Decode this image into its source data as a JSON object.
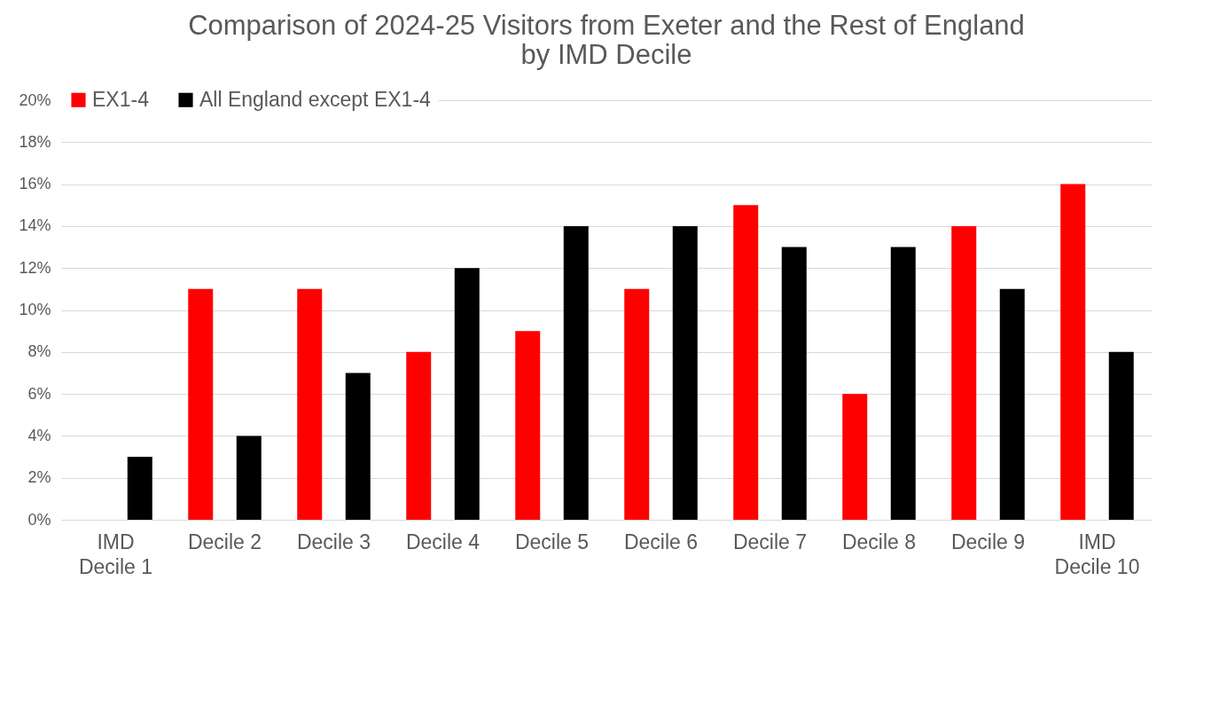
{
  "chart_data": {
    "type": "bar",
    "title": [
      "Comparison of 2024-25 Visitors from Exeter and the Rest of England",
      "by IMD Decile"
    ],
    "categories": [
      "IMD Decile 1",
      "Decile 2",
      "Decile 3",
      "Decile 4",
      "Decile 5",
      "Decile 6",
      "Decile 7",
      "Decile 8",
      "Decile 9",
      "IMD Decile 10"
    ],
    "series": [
      {
        "name": "EX1-4",
        "color": "#ff0000",
        "values": [
          0,
          11,
          11,
          8,
          9,
          11,
          15,
          6,
          14,
          16
        ]
      },
      {
        "name": "All England except EX1-4",
        "color": "#000000",
        "values": [
          3,
          4,
          7,
          12,
          14,
          14,
          13,
          13,
          11,
          8
        ]
      }
    ],
    "ylim": [
      0,
      20
    ],
    "yticks": [
      {
        "value": 0,
        "label": "0%"
      },
      {
        "value": 2,
        "label": "2%"
      },
      {
        "value": 4,
        "label": "4%"
      },
      {
        "value": 6,
        "label": "6%"
      },
      {
        "value": 8,
        "label": "8%"
      },
      {
        "value": 10,
        "label": "10%"
      },
      {
        "value": 12,
        "label": "12%"
      },
      {
        "value": 14,
        "label": "14%"
      },
      {
        "value": 16,
        "label": "16%"
      },
      {
        "value": 18,
        "label": "18%"
      },
      {
        "value": 20,
        "label": "20%"
      }
    ],
    "grid": "y",
    "legend": "top"
  }
}
